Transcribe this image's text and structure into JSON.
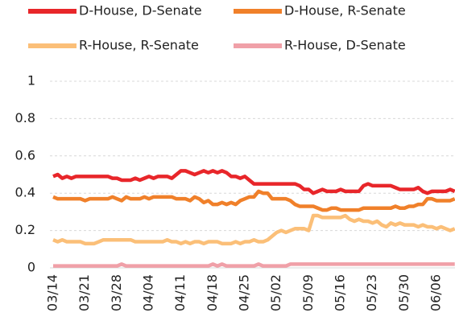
{
  "chart_data": {
    "type": "line",
    "categories": [
      "03/14",
      null,
      null,
      null,
      null,
      null,
      null,
      "03/21",
      null,
      null,
      null,
      null,
      null,
      null,
      "03/28",
      null,
      null,
      null,
      null,
      null,
      null,
      "04/04",
      null,
      null,
      null,
      null,
      null,
      null,
      "04/11",
      null,
      null,
      null,
      null,
      null,
      null,
      "04/18",
      null,
      null,
      null,
      null,
      null,
      null,
      "04/25",
      null,
      null,
      null,
      null,
      null,
      null,
      "05/02",
      null,
      null,
      null,
      null,
      null,
      null,
      "05/09",
      null,
      null,
      null,
      null,
      null,
      null,
      "05/16",
      null,
      null,
      null,
      null,
      null,
      null,
      "05/23",
      null,
      null,
      null,
      null,
      null,
      null,
      "05/30",
      null,
      null,
      null,
      null,
      null,
      null,
      "06/06",
      null,
      null,
      null,
      null
    ],
    "series": [
      {
        "name": "D-House, D-Senate",
        "color": "#e8262a",
        "values": [
          0.49,
          0.5,
          0.48,
          0.49,
          0.48,
          0.49,
          0.49,
          0.49,
          0.49,
          0.49,
          0.49,
          0.49,
          0.49,
          0.48,
          0.48,
          0.47,
          0.47,
          0.47,
          0.48,
          0.47,
          0.48,
          0.49,
          0.48,
          0.49,
          0.49,
          0.49,
          0.48,
          0.5,
          0.52,
          0.52,
          0.51,
          0.5,
          0.51,
          0.52,
          0.51,
          0.52,
          0.51,
          0.52,
          0.51,
          0.49,
          0.49,
          0.48,
          0.49,
          0.47,
          0.45,
          0.45,
          0.45,
          0.45,
          0.45,
          0.45,
          0.45,
          0.45,
          0.45,
          0.45,
          0.44,
          0.42,
          0.42,
          0.4,
          0.41,
          0.42,
          0.41,
          0.41,
          0.41,
          0.42,
          0.41,
          0.41,
          0.41,
          0.41,
          0.44,
          0.45,
          0.44,
          0.44,
          0.44,
          0.44,
          0.44,
          0.43,
          0.42,
          0.42,
          0.42,
          0.42,
          0.43,
          0.41,
          0.4,
          0.41,
          0.41,
          0.41,
          0.41,
          0.42,
          0.41
        ]
      },
      {
        "name": "D-House, R-Senate",
        "color": "#f0802a",
        "values": [
          0.38,
          0.37,
          0.37,
          0.37,
          0.37,
          0.37,
          0.37,
          0.36,
          0.37,
          0.37,
          0.37,
          0.37,
          0.37,
          0.38,
          0.37,
          0.36,
          0.38,
          0.37,
          0.37,
          0.37,
          0.38,
          0.37,
          0.38,
          0.38,
          0.38,
          0.38,
          0.38,
          0.37,
          0.37,
          0.37,
          0.36,
          0.38,
          0.37,
          0.35,
          0.36,
          0.34,
          0.34,
          0.35,
          0.34,
          0.35,
          0.34,
          0.36,
          0.37,
          0.38,
          0.38,
          0.41,
          0.4,
          0.4,
          0.37,
          0.37,
          0.37,
          0.37,
          0.36,
          0.34,
          0.33,
          0.33,
          0.33,
          0.33,
          0.32,
          0.31,
          0.31,
          0.32,
          0.32,
          0.31,
          0.31,
          0.31,
          0.31,
          0.31,
          0.32,
          0.32,
          0.32,
          0.32,
          0.32,
          0.32,
          0.32,
          0.33,
          0.32,
          0.32,
          0.33,
          0.33,
          0.34,
          0.34,
          0.37,
          0.37,
          0.36,
          0.36,
          0.36,
          0.36,
          0.37
        ]
      },
      {
        "name": "R-House, R-Senate",
        "color": "#fbbf78",
        "values": [
          0.15,
          0.14,
          0.15,
          0.14,
          0.14,
          0.14,
          0.14,
          0.13,
          0.13,
          0.13,
          0.14,
          0.15,
          0.15,
          0.15,
          0.15,
          0.15,
          0.15,
          0.15,
          0.14,
          0.14,
          0.14,
          0.14,
          0.14,
          0.14,
          0.14,
          0.15,
          0.14,
          0.14,
          0.13,
          0.14,
          0.13,
          0.14,
          0.14,
          0.13,
          0.14,
          0.14,
          0.14,
          0.13,
          0.13,
          0.13,
          0.14,
          0.13,
          0.14,
          0.14,
          0.15,
          0.14,
          0.14,
          0.15,
          0.17,
          0.19,
          0.2,
          0.19,
          0.2,
          0.21,
          0.21,
          0.21,
          0.2,
          0.28,
          0.28,
          0.27,
          0.27,
          0.27,
          0.27,
          0.27,
          0.28,
          0.26,
          0.25,
          0.26,
          0.25,
          0.25,
          0.24,
          0.25,
          0.23,
          0.22,
          0.24,
          0.23,
          0.24,
          0.23,
          0.23,
          0.23,
          0.22,
          0.23,
          0.22,
          0.22,
          0.21,
          0.22,
          0.21,
          0.2,
          0.21
        ]
      },
      {
        "name": "R-House, D-Senate",
        "color": "#f0a0a8",
        "values": [
          0.01,
          0.01,
          0.01,
          0.01,
          0.01,
          0.01,
          0.01,
          0.01,
          0.01,
          0.01,
          0.01,
          0.01,
          0.01,
          0.01,
          0.01,
          0.02,
          0.01,
          0.01,
          0.01,
          0.01,
          0.01,
          0.01,
          0.01,
          0.01,
          0.01,
          0.01,
          0.01,
          0.01,
          0.01,
          0.01,
          0.01,
          0.01,
          0.01,
          0.01,
          0.01,
          0.02,
          0.01,
          0.02,
          0.01,
          0.01,
          0.01,
          0.01,
          0.01,
          0.01,
          0.01,
          0.02,
          0.01,
          0.01,
          0.01,
          0.01,
          0.01,
          0.01,
          0.02,
          0.02,
          0.02,
          0.02,
          0.02,
          0.02,
          0.02,
          0.02,
          0.02,
          0.02,
          0.02,
          0.02,
          0.02,
          0.02,
          0.02,
          0.02,
          0.02,
          0.02,
          0.02,
          0.02,
          0.02,
          0.02,
          0.02,
          0.02,
          0.02,
          0.02,
          0.02,
          0.02,
          0.02,
          0.02,
          0.02,
          0.02,
          0.02,
          0.02,
          0.02,
          0.02,
          0.02
        ]
      }
    ],
    "ylim": [
      0,
      1
    ],
    "yticks": [
      0,
      0.2,
      0.4,
      0.6,
      0.8,
      1
    ],
    "grid": true
  }
}
